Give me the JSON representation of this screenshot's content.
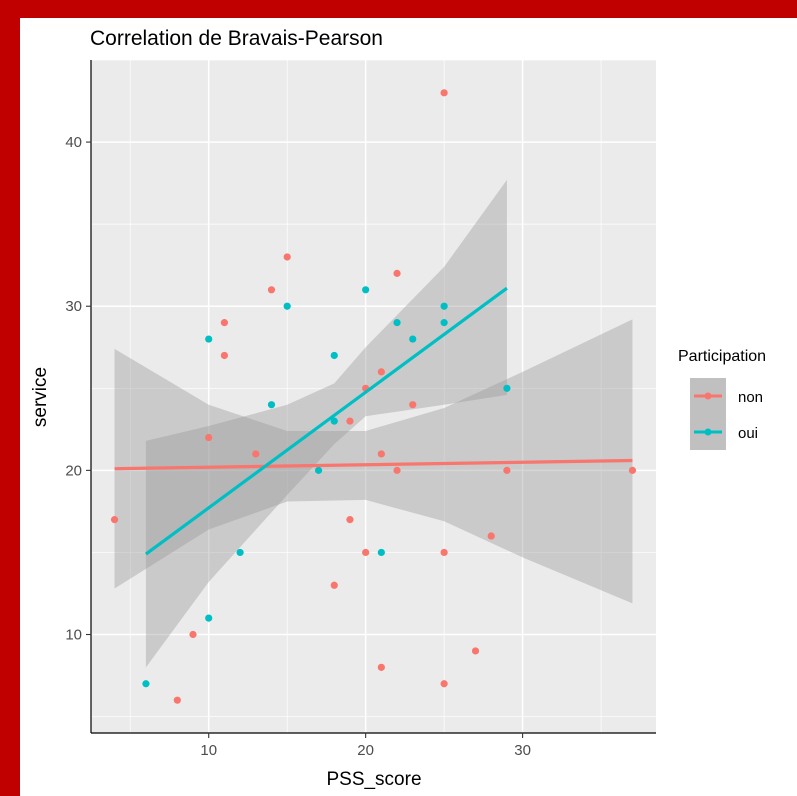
{
  "chart_data": {
    "type": "scatter",
    "title": "Correlation de Bravais-Pearson",
    "xlabel": "PSS_score",
    "ylabel": "service",
    "xlim": [
      2.5,
      38.5
    ],
    "ylim": [
      4.0,
      45.0
    ],
    "x_ticks": [
      10,
      20,
      30
    ],
    "y_ticks": [
      10,
      20,
      30,
      40
    ],
    "grid": true,
    "legend_position": "right",
    "legend_title": "Participation",
    "series": [
      {
        "name": "non",
        "color": "#F8766D",
        "points": [
          [
            4,
            17
          ],
          [
            8,
            6
          ],
          [
            9,
            10
          ],
          [
            10,
            22
          ],
          [
            11,
            29
          ],
          [
            11,
            27
          ],
          [
            13,
            21
          ],
          [
            14,
            31
          ],
          [
            15,
            33
          ],
          [
            18,
            13
          ],
          [
            19,
            23
          ],
          [
            19,
            17
          ],
          [
            20,
            25
          ],
          [
            20,
            15
          ],
          [
            21,
            26
          ],
          [
            21,
            21
          ],
          [
            21,
            8
          ],
          [
            22,
            32
          ],
          [
            22,
            20
          ],
          [
            23,
            24
          ],
          [
            25,
            43
          ],
          [
            25,
            15
          ],
          [
            25,
            7
          ],
          [
            27,
            9
          ],
          [
            28,
            16
          ],
          [
            29,
            20
          ],
          [
            37,
            20
          ]
        ],
        "fit_line": [
          [
            4,
            20.1
          ],
          [
            37,
            20.6
          ]
        ],
        "confidence_band": {
          "x": [
            4,
            10,
            15,
            20,
            25,
            30,
            37
          ],
          "lower": [
            12.8,
            16.4,
            18.1,
            18.2,
            16.9,
            14.7,
            11.9
          ],
          "upper": [
            27.4,
            24.0,
            22.4,
            22.4,
            23.8,
            26.0,
            29.2
          ]
        }
      },
      {
        "name": "oui",
        "color": "#00BFC4",
        "points": [
          [
            6,
            7
          ],
          [
            10,
            28
          ],
          [
            10,
            11
          ],
          [
            12,
            15
          ],
          [
            14,
            24
          ],
          [
            15,
            30
          ],
          [
            17,
            20
          ],
          [
            18,
            27
          ],
          [
            18,
            23
          ],
          [
            20,
            31
          ],
          [
            21,
            15
          ],
          [
            22,
            29
          ],
          [
            23,
            28
          ],
          [
            25,
            30
          ],
          [
            25,
            29
          ],
          [
            29,
            25
          ]
        ],
        "fit_line": [
          [
            6,
            14.9
          ],
          [
            29,
            31.1
          ]
        ],
        "confidence_band": {
          "x": [
            6,
            10,
            15,
            18,
            20,
            25,
            29
          ],
          "lower": [
            8.0,
            13.2,
            18.5,
            21.6,
            23.3,
            24.0,
            24.6
          ],
          "upper": [
            21.8,
            22.7,
            24.0,
            25.3,
            27.5,
            32.4,
            37.7
          ]
        }
      }
    ]
  },
  "colors": {
    "frame": "#c00000",
    "panel_background": "#ebebeb",
    "grid": "#ffffff",
    "band": "#999999"
  }
}
